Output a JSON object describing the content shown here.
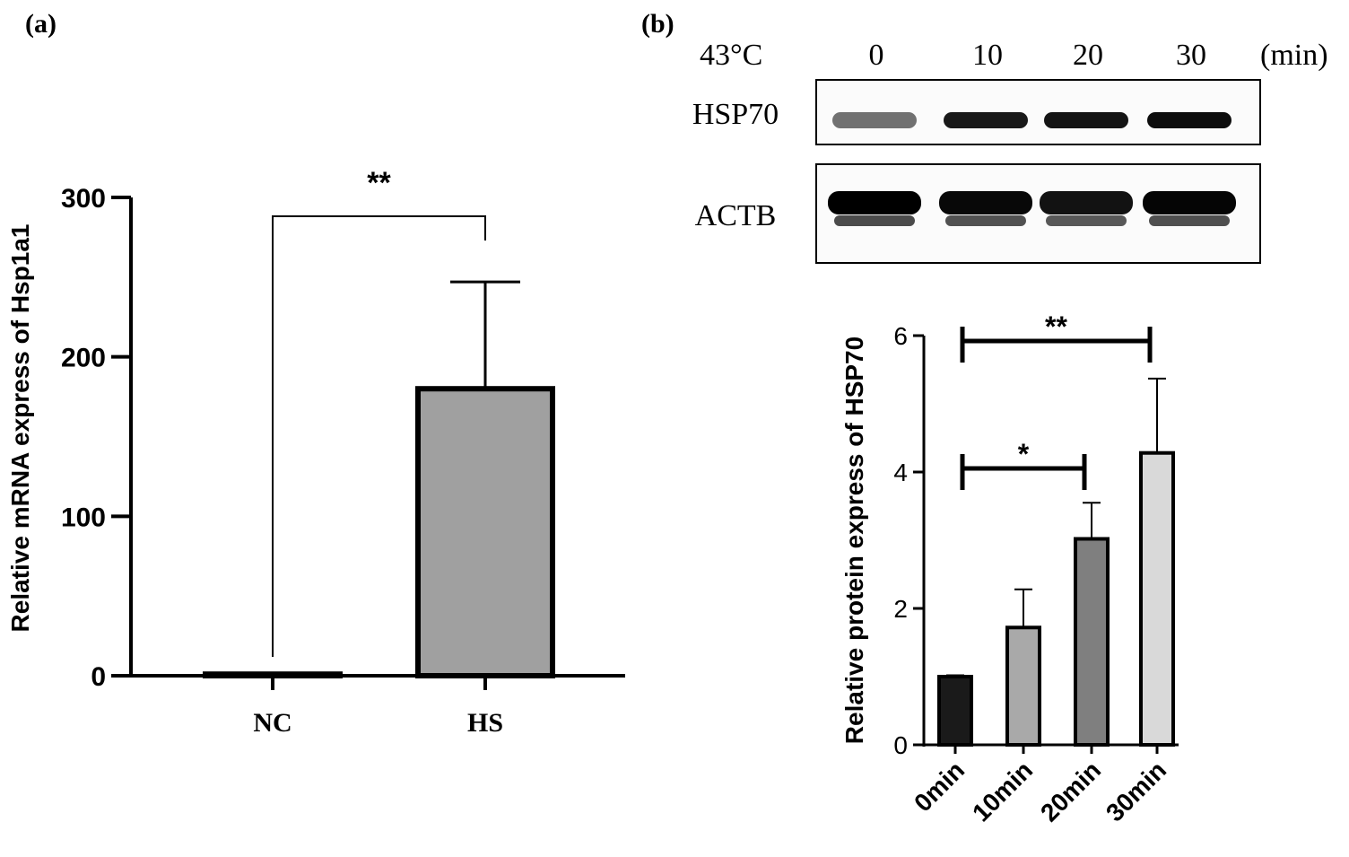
{
  "panel_a": {
    "label": "(a)"
  },
  "panel_b": {
    "label": "(b)",
    "blot": {
      "condition_label": "43°C",
      "lanes": [
        "0",
        "10",
        "20",
        "30"
      ],
      "unit_label": "(min)",
      "rows": [
        {
          "name": "HSP70",
          "band_intensity": [
            0.55,
            0.9,
            0.92,
            0.95
          ],
          "second_band": false
        },
        {
          "name": "ACTB",
          "band_intensity": [
            1.0,
            0.97,
            0.93,
            0.98
          ],
          "second_band": true
        }
      ]
    }
  },
  "chart_data": [
    {
      "id": "a",
      "type": "bar",
      "categories": [
        "NC",
        "HS"
      ],
      "values": [
        1,
        180
      ],
      "error_upper": [
        0,
        247
      ],
      "bar_colors": [
        "#a0a0a0",
        "#a0a0a0"
      ],
      "title": "",
      "xlabel": "",
      "ylabel": "Relative mRNA express of Hsp1a1",
      "ylim": [
        0,
        300
      ],
      "yticks": [
        0,
        100,
        200,
        300
      ],
      "grid": false,
      "significance": [
        {
          "from": 0,
          "to": 1,
          "label": "**"
        }
      ]
    },
    {
      "id": "b",
      "type": "bar",
      "categories": [
        "0min",
        "10min",
        "20min",
        "30min"
      ],
      "values": [
        1.0,
        1.72,
        3.02,
        4.28
      ],
      "error_upper": [
        1.02,
        2.28,
        3.55,
        5.37
      ],
      "bar_colors": [
        "#1a1a1a",
        "#a9a9a9",
        "#7f7f7f",
        "#d9d9d9"
      ],
      "title": "",
      "xlabel": "",
      "ylabel": "Relative protein express of HSP70",
      "ylim": [
        0,
        6
      ],
      "yticks": [
        0,
        2,
        4,
        6
      ],
      "grid": false,
      "significance": [
        {
          "from": 0,
          "to": 2,
          "label": "*"
        },
        {
          "from": 0,
          "to": 3,
          "label": "**"
        }
      ]
    }
  ]
}
